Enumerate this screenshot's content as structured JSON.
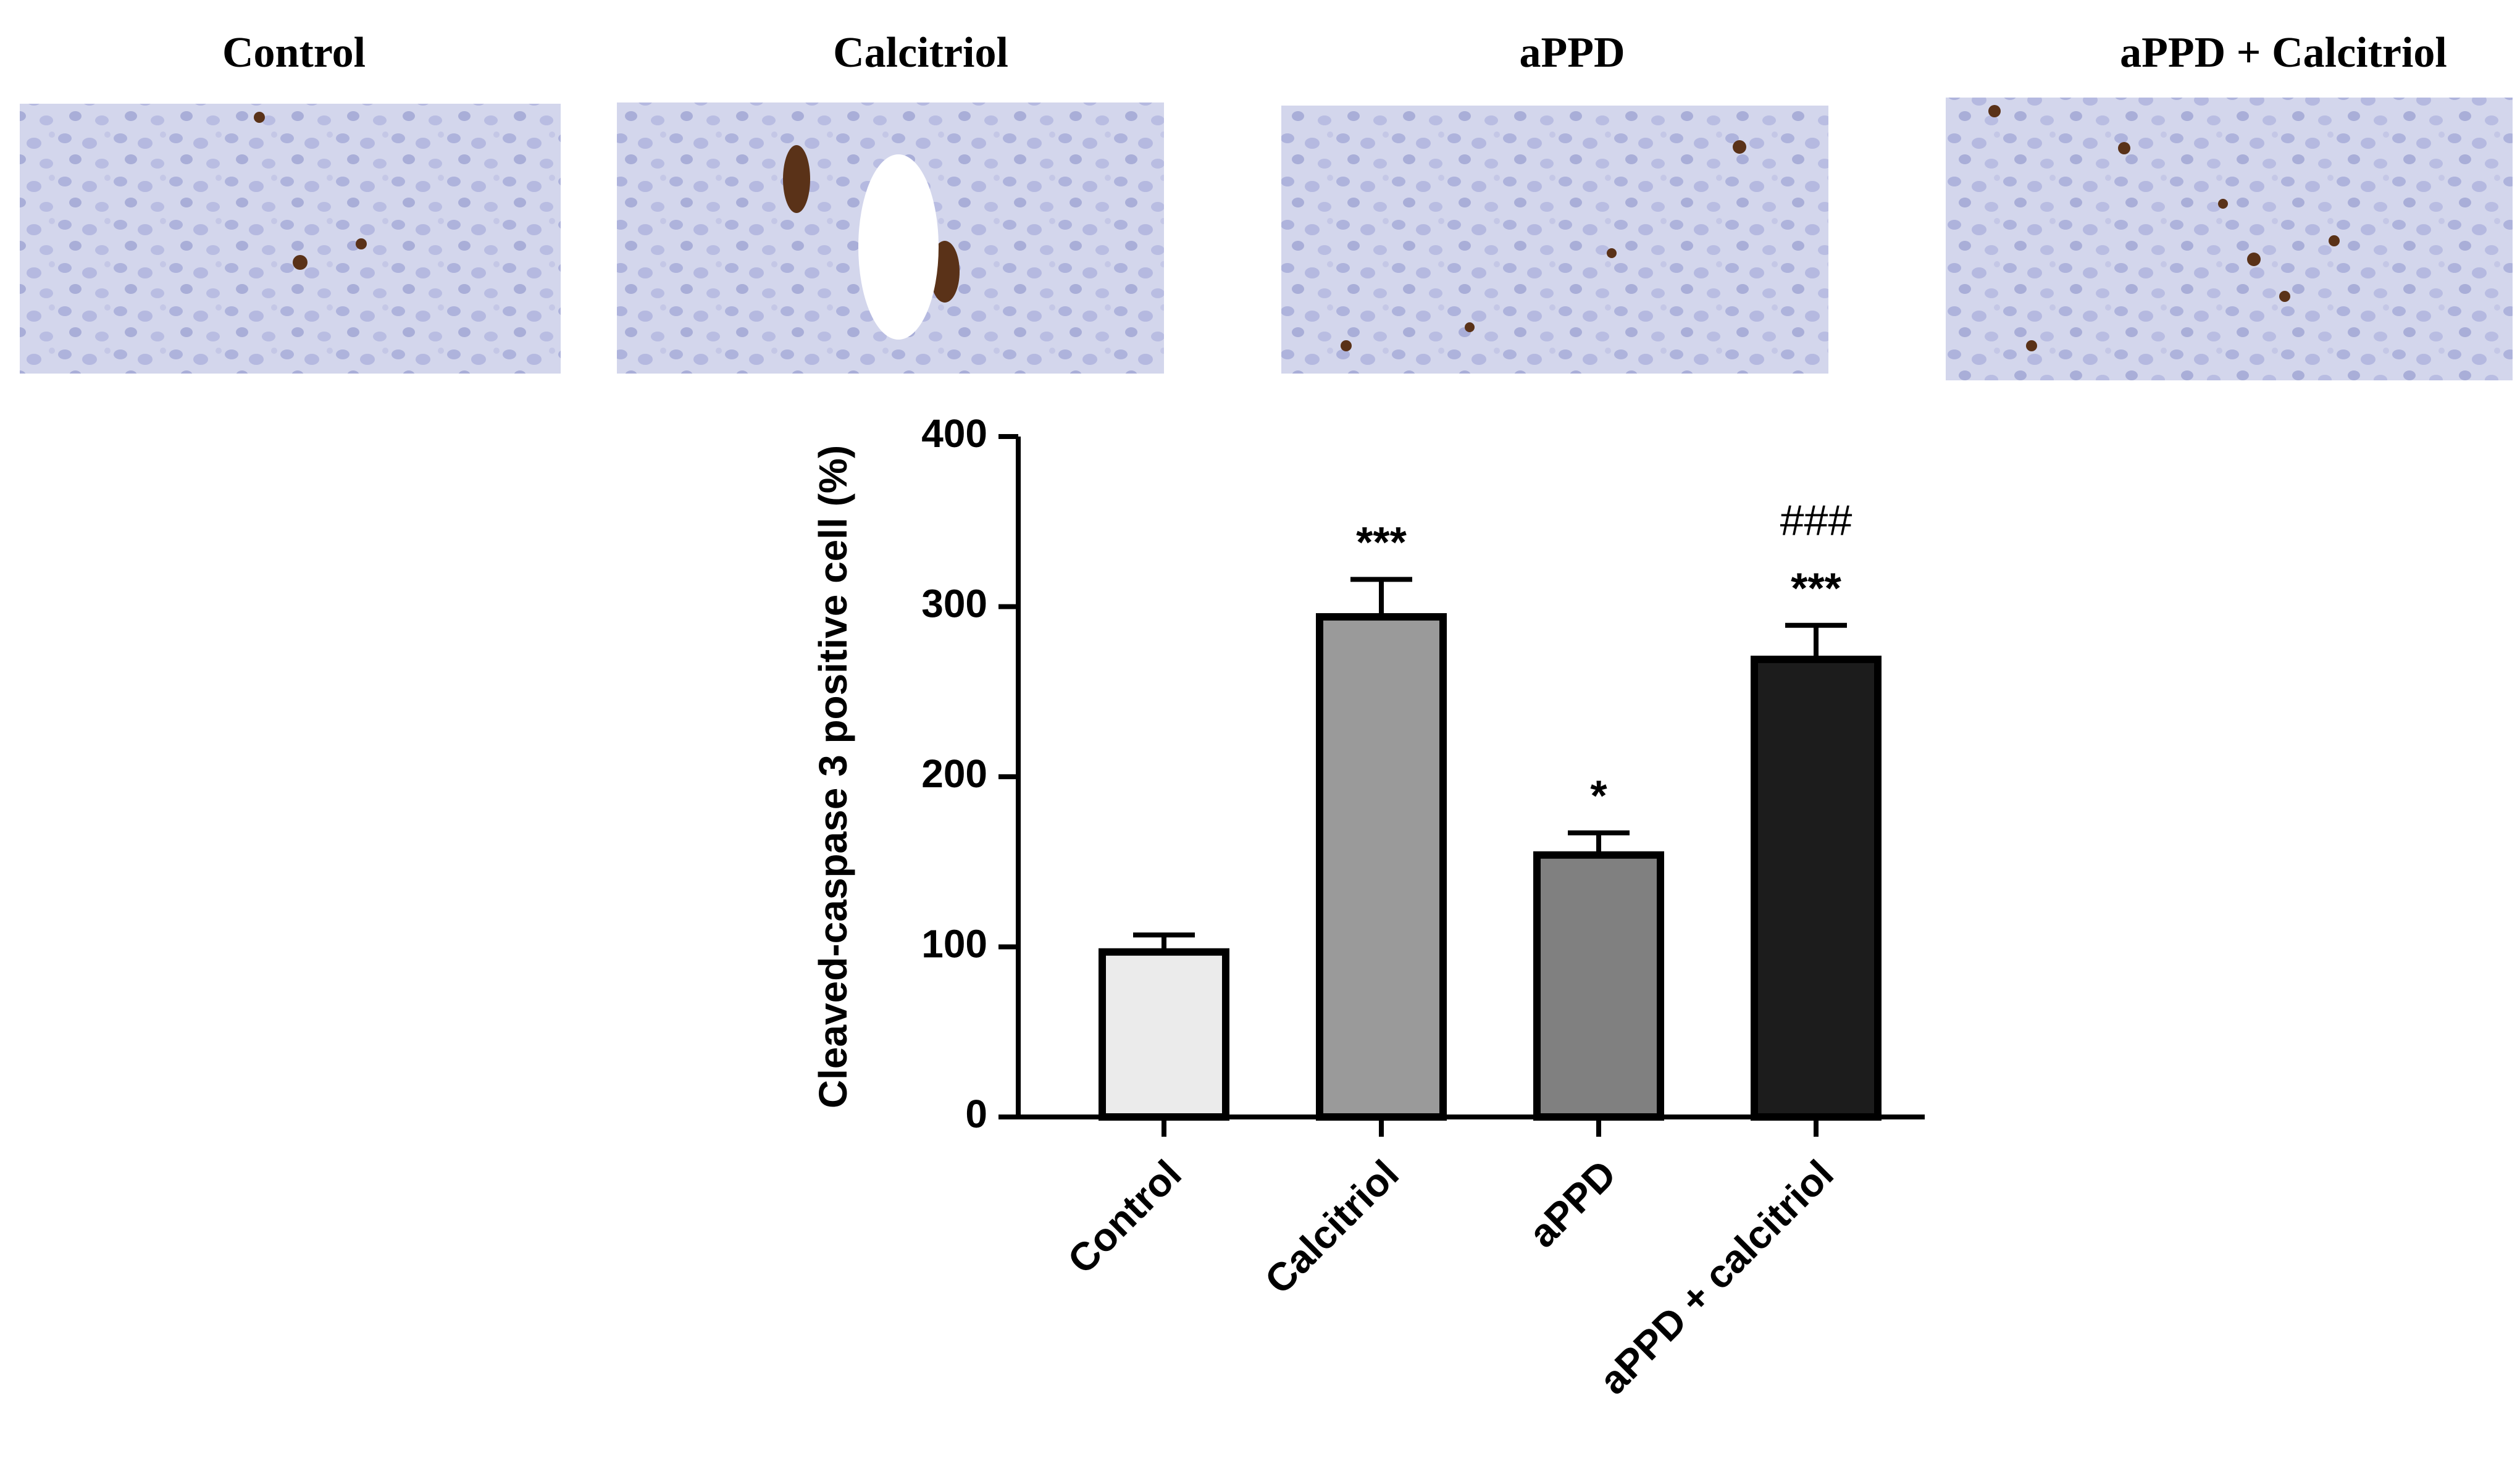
{
  "image_panels": {
    "titles": [
      "Control",
      "Calcitriol",
      "aPPD",
      "aPPD + Calcitriol"
    ]
  },
  "chart_data": {
    "type": "bar",
    "ylabel": "Cleaved-caspase 3 positive cell (%)",
    "categories": [
      "Control",
      "Calcitriol",
      "aPPD",
      "aPPD + calcitriol"
    ],
    "values": [
      97,
      294,
      154,
      269
    ],
    "errors": [
      10,
      22,
      13,
      20
    ],
    "colors": [
      "#ebebeb",
      "#9a9a9a",
      "#808080",
      "#1c1c1c"
    ],
    "significance": [
      null,
      "***",
      "*",
      "***"
    ],
    "significance_vs_appd": [
      null,
      null,
      null,
      "###"
    ],
    "ylim": [
      0,
      400
    ],
    "yticks": [
      0,
      100,
      200,
      300,
      400
    ],
    "grid": false
  }
}
